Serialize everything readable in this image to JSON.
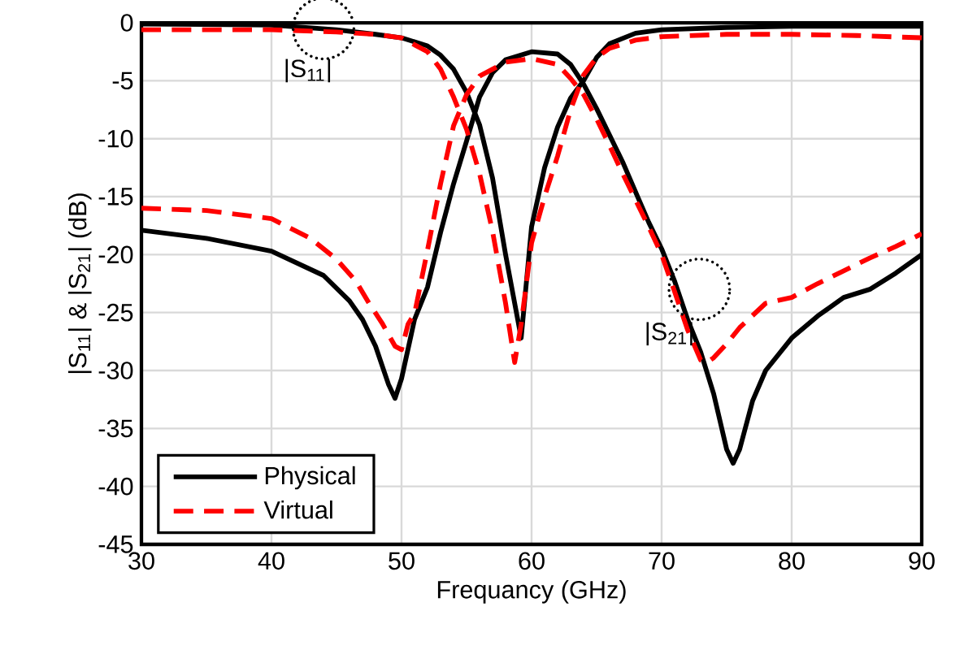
{
  "chart_data": {
    "type": "line",
    "xlabel": "Frequancy (GHz)",
    "ylabel": "|S$_{11}$| & |S$_{21}$| (dB)",
    "xlim": [
      30,
      90
    ],
    "ylim": [
      -45,
      0
    ],
    "xticks": [
      30,
      40,
      50,
      60,
      70,
      80,
      90
    ],
    "yticks": [
      -45,
      -40,
      -35,
      -30,
      -25,
      -20,
      -15,
      -10,
      -5,
      0
    ],
    "grid": true,
    "legend": "bottom left",
    "marker": "none",
    "series": [
      {
        "name": "Physical",
        "color": "#000000",
        "line_style": "solid",
        "x": [
          30,
          40,
          45,
          48,
          50,
          52,
          53,
          54,
          55,
          56,
          57,
          58,
          59.2,
          60,
          61,
          62,
          63,
          64,
          65,
          66,
          68,
          70,
          75,
          80,
          90
        ],
        "values": [
          -0.1,
          -0.2,
          -0.6,
          -1.0,
          -1.3,
          -2.0,
          -2.8,
          -4.0,
          -6.0,
          -8.8,
          -13.4,
          -20.0,
          -27.2,
          -17.6,
          -12.5,
          -9.0,
          -6.5,
          -5.0,
          -3.0,
          -1.8,
          -0.9,
          -0.6,
          -0.4,
          -0.3,
          -0.3
        ]
      },
      {
        "color": "#000000",
        "line_style": "solid",
        "x": [
          30,
          35,
          40,
          44,
          46,
          47,
          48,
          49,
          49.5,
          50,
          51,
          52,
          53,
          54,
          55,
          56,
          57,
          58,
          60,
          62,
          63,
          64,
          65,
          66,
          67,
          68,
          69,
          70,
          71,
          72,
          73,
          74,
          75,
          75.5,
          76,
          77,
          78,
          80,
          82,
          84,
          86,
          88,
          90
        ],
        "values": [
          -17.9,
          -18.6,
          -19.7,
          -21.8,
          -24.0,
          -25.6,
          -27.9,
          -31.2,
          -32.4,
          -30.7,
          -25.6,
          -22.8,
          -18.1,
          -13.9,
          -10.2,
          -6.4,
          -4.3,
          -3.2,
          -2.5,
          -2.7,
          -3.6,
          -5.3,
          -7.4,
          -9.7,
          -12.0,
          -14.6,
          -17.2,
          -19.5,
          -22.3,
          -25.6,
          -28.4,
          -32.0,
          -36.8,
          -38.0,
          -36.8,
          -32.6,
          -30.0,
          -27.2,
          -25.3,
          -23.7,
          -23.0,
          -21.6,
          -20.0
        ]
      },
      {
        "name": "Virtual",
        "color": "#ff0000",
        "line_style": "dashed",
        "x": [
          30,
          40,
          45,
          48,
          50,
          52,
          53,
          54,
          55,
          56,
          57,
          58,
          58.7,
          59.2,
          60,
          61,
          62,
          63,
          64,
          65,
          66,
          68,
          70,
          75,
          80,
          85,
          90
        ],
        "values": [
          -0.6,
          -0.6,
          -0.8,
          -1.0,
          -1.3,
          -2.5,
          -4.0,
          -6.4,
          -9.2,
          -13.0,
          -18.0,
          -24.2,
          -29.3,
          -26.0,
          -19.0,
          -15.0,
          -11.5,
          -7.5,
          -4.5,
          -3.0,
          -2.2,
          -1.5,
          -1.2,
          -1.0,
          -1.0,
          -1.1,
          -1.3
        ]
      },
      {
        "color": "#ff0000",
        "line_style": "dashed",
        "x": [
          30,
          35,
          40,
          43,
          45,
          46.5,
          47.5,
          48.5,
          49.5,
          50,
          50.5,
          51,
          52,
          53,
          54,
          55,
          56,
          58,
          60,
          62,
          63,
          64,
          65,
          66,
          67,
          68,
          69,
          70,
          71,
          72,
          73,
          73.5,
          74,
          75,
          76,
          78,
          80,
          82,
          84,
          86,
          88,
          90
        ],
        "values": [
          -16.0,
          -16.2,
          -16.9,
          -18.6,
          -20.4,
          -22.3,
          -24.2,
          -25.9,
          -27.9,
          -28.2,
          -26.0,
          -25.1,
          -19.6,
          -13.9,
          -8.9,
          -6.2,
          -4.6,
          -3.4,
          -3.1,
          -3.6,
          -4.8,
          -6.2,
          -8.3,
          -10.6,
          -13.0,
          -15.3,
          -17.6,
          -20.0,
          -23.2,
          -26.5,
          -29.1,
          -29.3,
          -28.9,
          -27.7,
          -26.3,
          -24.2,
          -23.7,
          -22.5,
          -21.4,
          -20.3,
          -19.3,
          -18.2
        ]
      }
    ],
    "annotations": [
      {
        "text": "|S$_{11}$|",
        "x": 44,
        "y": -0.5
      },
      {
        "text": "|S$_{21}$|",
        "x": 72.9,
        "y": -23
      }
    ]
  }
}
